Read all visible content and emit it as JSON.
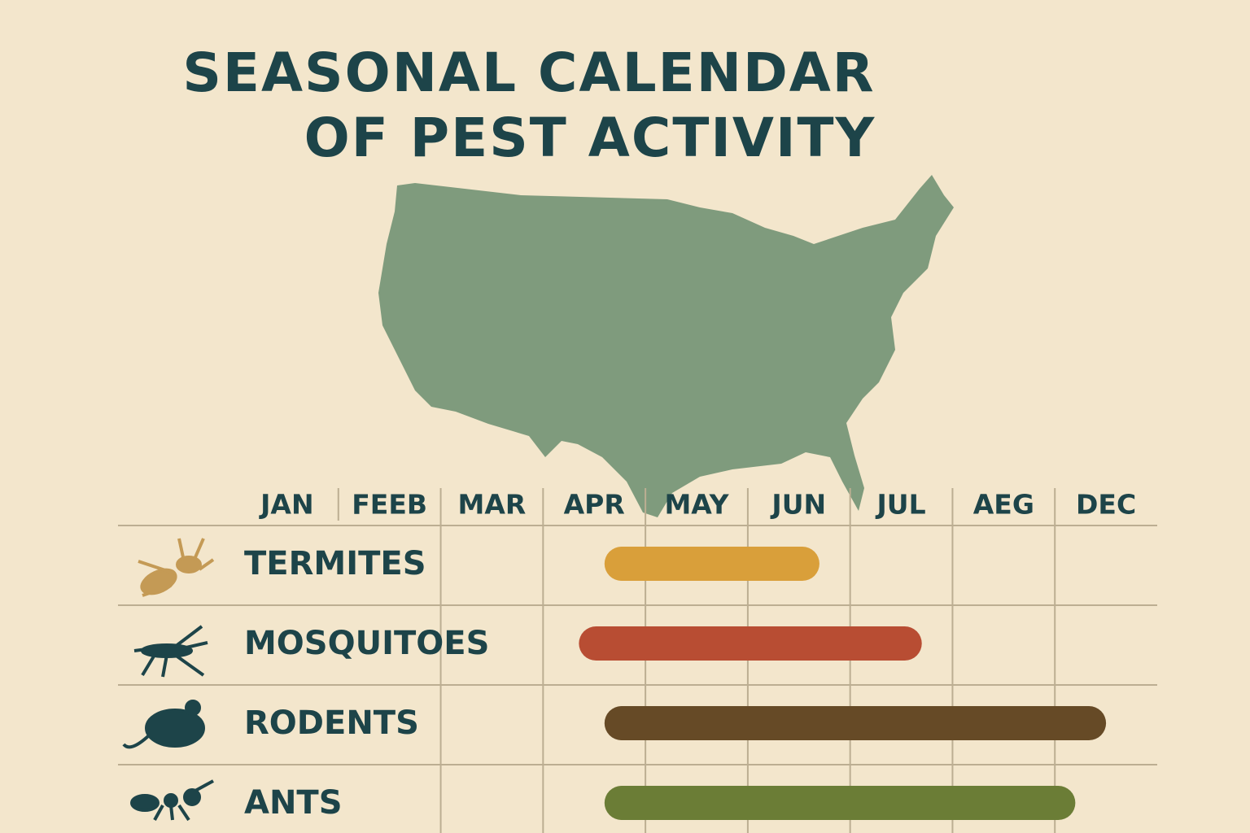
{
  "chart_data": {
    "type": "timeline",
    "title": [
      "SEASONAL CALENDAR",
      "OF PEST ACTIVITY"
    ],
    "categories": [
      "JAN",
      "FEEB",
      "MAR",
      "APR",
      "MAY",
      "JUN",
      "JUL",
      "AEG",
      "DEC"
    ],
    "rows": [
      {
        "name": "TERMITES",
        "color": "#d99f3a",
        "start": 3.6,
        "end": 5.7
      },
      {
        "name": "MOSQUITOES",
        "color": "#b84d33",
        "start": 3.35,
        "end": 6.7
      },
      {
        "name": "RODENTS",
        "color": "#664a26",
        "start": 3.6,
        "end": 8.5
      },
      {
        "name": "ANTS",
        "color": "#6b7d36",
        "start": 3.6,
        "end": 8.2
      }
    ]
  }
}
